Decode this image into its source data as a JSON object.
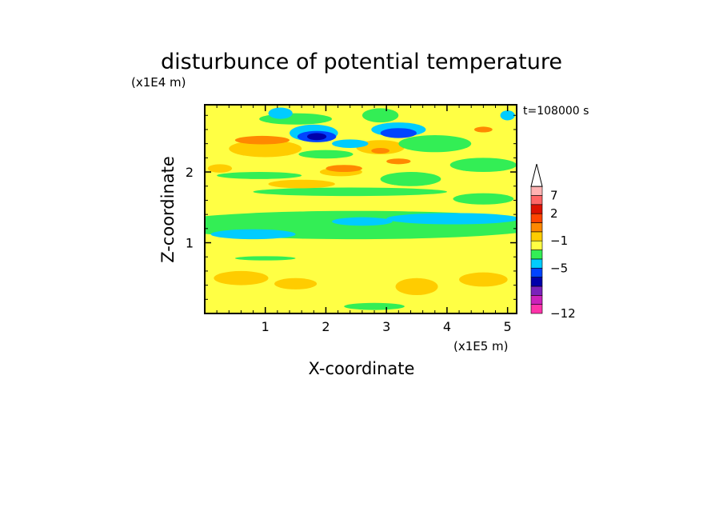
{
  "chart_data": {
    "type": "heatmap",
    "title": "disturbunce of potential temperature",
    "xlabel": "X-coordinate",
    "ylabel": "Z-coordinate",
    "x_scale_label": "(x1E5 m)",
    "y_scale_label": "(x1E4 m)",
    "time_label": "t=108000 s",
    "xlim": [
      0,
      5.15
    ],
    "ylim": [
      0,
      2.95
    ],
    "x_ticks": [
      1,
      2,
      3,
      4,
      5
    ],
    "x_tick_labels": [
      "1",
      "2",
      "3",
      "4",
      "5"
    ],
    "y_ticks": [
      1,
      2
    ],
    "y_tick_labels": [
      "1",
      "2"
    ],
    "colorbar": {
      "tick_labels": [
        "7",
        "2",
        "−1",
        "−5",
        "−12"
      ],
      "tick_values": [
        7,
        2,
        -1,
        -5,
        -12
      ],
      "colors": [
        "#ff33aa",
        "#cc22bb",
        "#7a22bb",
        "#0000aa",
        "#0044ff",
        "#00ccff",
        "#33ee55",
        "#ffff44",
        "#ffcc00",
        "#ff8800",
        "#ff4400",
        "#dd1100",
        "#ff6666",
        "#ffb3b3"
      ],
      "extend": "max"
    },
    "regions": [
      {
        "color": "#33ee55",
        "cx": 2.5,
        "cy": 1.25,
        "rx": 3.2,
        "ry": 0.2
      },
      {
        "color": "#00ccff",
        "cx": 0.8,
        "cy": 1.12,
        "rx": 0.7,
        "ry": 0.07
      },
      {
        "color": "#00ccff",
        "cx": 4.1,
        "cy": 1.34,
        "rx": 1.1,
        "ry": 0.08
      },
      {
        "color": "#00ccff",
        "cx": 2.6,
        "cy": 1.3,
        "rx": 0.5,
        "ry": 0.06
      },
      {
        "color": "#ffcc00",
        "cx": 0.6,
        "cy": 0.5,
        "rx": 0.45,
        "ry": 0.1
      },
      {
        "color": "#ffcc00",
        "cx": 1.5,
        "cy": 0.42,
        "rx": 0.35,
        "ry": 0.08
      },
      {
        "color": "#ffcc00",
        "cx": 3.5,
        "cy": 0.38,
        "rx": 0.35,
        "ry": 0.12
      },
      {
        "color": "#ffcc00",
        "cx": 4.6,
        "cy": 0.48,
        "rx": 0.4,
        "ry": 0.1
      },
      {
        "color": "#33ee55",
        "cx": 2.8,
        "cy": 0.1,
        "rx": 0.5,
        "ry": 0.05
      },
      {
        "color": "#33ee55",
        "cx": 1.0,
        "cy": 0.78,
        "rx": 0.5,
        "ry": 0.03
      },
      {
        "color": "#33ee55",
        "cx": 2.4,
        "cy": 1.72,
        "rx": 1.6,
        "ry": 0.06
      },
      {
        "color": "#33ee55",
        "cx": 4.6,
        "cy": 1.62,
        "rx": 0.5,
        "ry": 0.08
      },
      {
        "color": "#33ee55",
        "cx": 0.9,
        "cy": 1.95,
        "rx": 0.7,
        "ry": 0.05
      },
      {
        "color": "#33ee55",
        "cx": 3.4,
        "cy": 1.9,
        "rx": 0.5,
        "ry": 0.1
      },
      {
        "color": "#33ee55",
        "cx": 4.6,
        "cy": 2.1,
        "rx": 0.55,
        "ry": 0.1
      },
      {
        "color": "#ffcc00",
        "cx": 1.6,
        "cy": 1.83,
        "rx": 0.55,
        "ry": 0.06
      },
      {
        "color": "#ffcc00",
        "cx": 2.25,
        "cy": 2.0,
        "rx": 0.35,
        "ry": 0.06
      },
      {
        "color": "#ffcc00",
        "cx": 0.25,
        "cy": 2.05,
        "rx": 0.2,
        "ry": 0.06
      },
      {
        "color": "#ffcc00",
        "cx": 1.0,
        "cy": 2.33,
        "rx": 0.6,
        "ry": 0.12
      },
      {
        "color": "#ffcc00",
        "cx": 2.9,
        "cy": 2.35,
        "rx": 0.4,
        "ry": 0.1
      },
      {
        "color": "#ff8800",
        "cx": 0.95,
        "cy": 2.45,
        "rx": 0.45,
        "ry": 0.06
      },
      {
        "color": "#33ee55",
        "cx": 2.0,
        "cy": 2.25,
        "rx": 0.45,
        "ry": 0.06
      },
      {
        "color": "#33ee55",
        "cx": 3.8,
        "cy": 2.4,
        "rx": 0.6,
        "ry": 0.12
      },
      {
        "color": "#33ee55",
        "cx": 1.5,
        "cy": 2.75,
        "rx": 0.6,
        "ry": 0.08
      },
      {
        "color": "#33ee55",
        "cx": 2.9,
        "cy": 2.8,
        "rx": 0.3,
        "ry": 0.1
      },
      {
        "color": "#00ccff",
        "cx": 1.25,
        "cy": 2.83,
        "rx": 0.2,
        "ry": 0.08
      },
      {
        "color": "#00ccff",
        "cx": 1.8,
        "cy": 2.55,
        "rx": 0.4,
        "ry": 0.12
      },
      {
        "color": "#00ccff",
        "cx": 2.4,
        "cy": 2.4,
        "rx": 0.3,
        "ry": 0.06
      },
      {
        "color": "#00ccff",
        "cx": 3.2,
        "cy": 2.6,
        "rx": 0.45,
        "ry": 0.1
      },
      {
        "color": "#00ccff",
        "cx": 5.0,
        "cy": 2.8,
        "rx": 0.12,
        "ry": 0.07
      },
      {
        "color": "#0044ff",
        "cx": 1.85,
        "cy": 2.5,
        "rx": 0.32,
        "ry": 0.08
      },
      {
        "color": "#0044ff",
        "cx": 3.2,
        "cy": 2.55,
        "rx": 0.3,
        "ry": 0.07
      },
      {
        "color": "#0000aa",
        "cx": 1.85,
        "cy": 2.5,
        "rx": 0.16,
        "ry": 0.05
      },
      {
        "color": "#ff8800",
        "cx": 2.3,
        "cy": 2.05,
        "rx": 0.3,
        "ry": 0.05
      },
      {
        "color": "#ff8800",
        "cx": 3.2,
        "cy": 2.15,
        "rx": 0.2,
        "ry": 0.04
      },
      {
        "color": "#ff8800",
        "cx": 4.6,
        "cy": 2.6,
        "rx": 0.15,
        "ry": 0.04
      },
      {
        "color": "#ff8800",
        "cx": 2.9,
        "cy": 2.3,
        "rx": 0.15,
        "ry": 0.04
      }
    ]
  }
}
